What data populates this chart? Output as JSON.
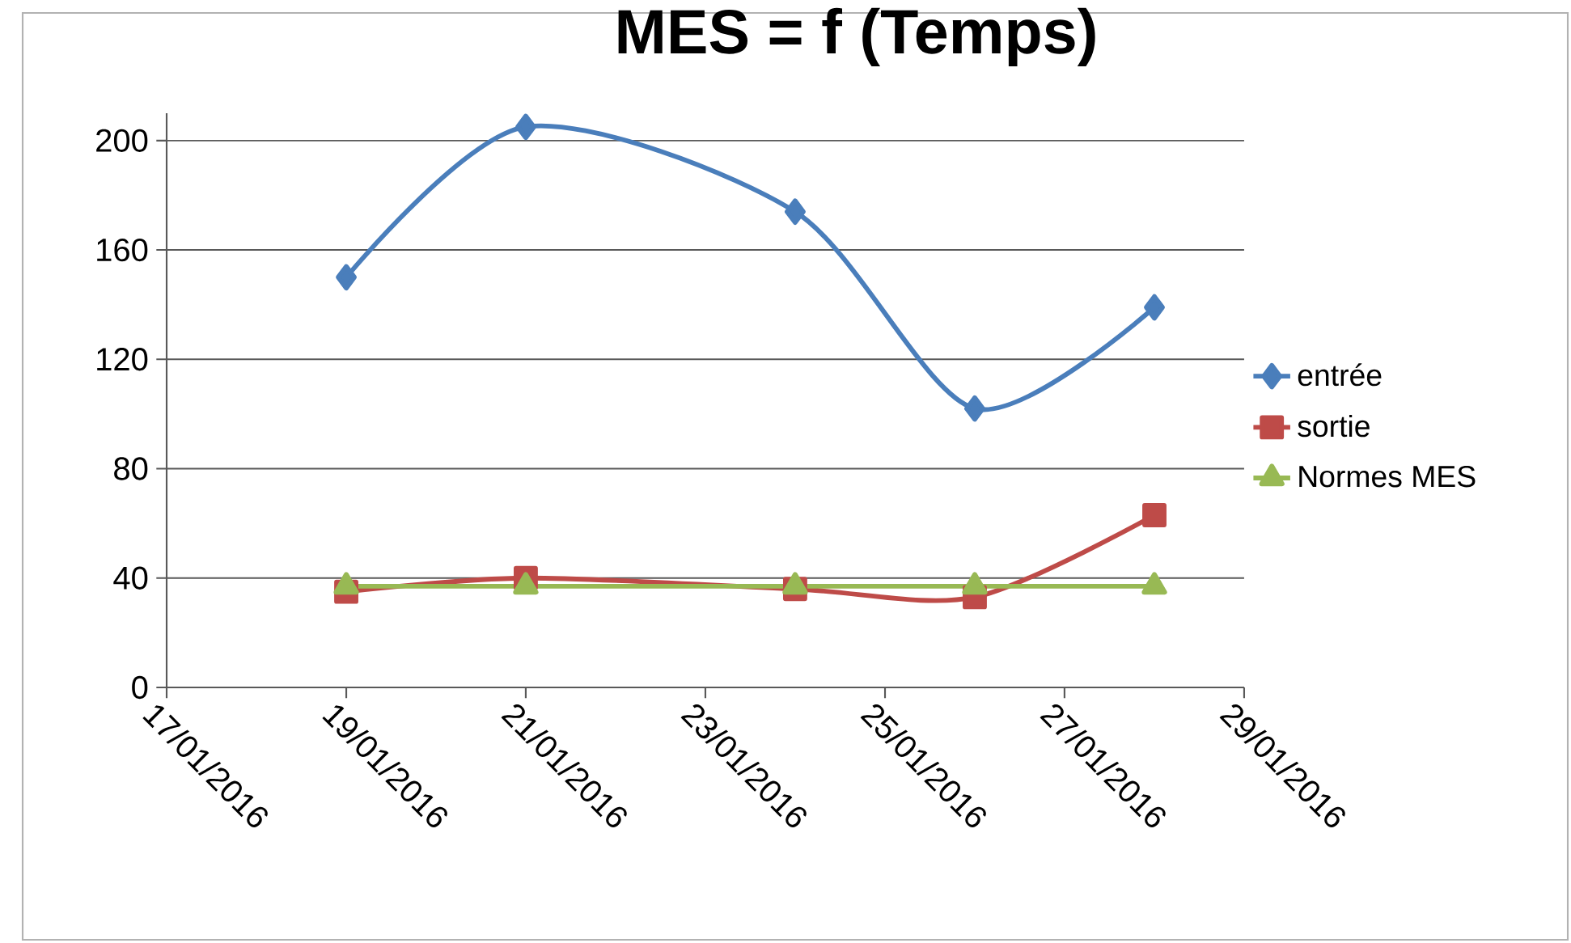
{
  "chart_data": {
    "type": "line",
    "title": "MES = f (Temps)",
    "x": [
      "2016-01-19",
      "2016-01-21",
      "2016-01-24",
      "2016-01-26",
      "2016-01-28"
    ],
    "series": [
      {
        "name": "entrée",
        "color": "#4a7ebb",
        "marker": "diamond",
        "values": [
          150,
          205,
          174,
          102,
          139
        ]
      },
      {
        "name": "sortie",
        "color": "#be4b48",
        "marker": "square",
        "values": [
          35,
          40,
          36,
          33,
          63
        ]
      },
      {
        "name": "Normes MES",
        "color": "#98b954",
        "marker": "triangle",
        "values": [
          37,
          37,
          37,
          37,
          37
        ]
      }
    ],
    "xlim": [
      "2016-01-17",
      "2016-01-29"
    ],
    "xticks": [
      {
        "value": "2016-01-17",
        "label": "17/01/2016"
      },
      {
        "value": "2016-01-19",
        "label": "19/01/2016"
      },
      {
        "value": "2016-01-21",
        "label": "21/01/2016"
      },
      {
        "value": "2016-01-23",
        "label": "23/01/2016"
      },
      {
        "value": "2016-01-25",
        "label": "25/01/2016"
      },
      {
        "value": "2016-01-27",
        "label": "27/01/2016"
      },
      {
        "value": "2016-01-29",
        "label": "29/01/2016"
      }
    ],
    "ylim": [
      0,
      210
    ],
    "yticks": [
      0,
      40,
      80,
      120,
      160,
      200
    ],
    "grid": "y",
    "legend": "right",
    "line_style": "solid"
  }
}
